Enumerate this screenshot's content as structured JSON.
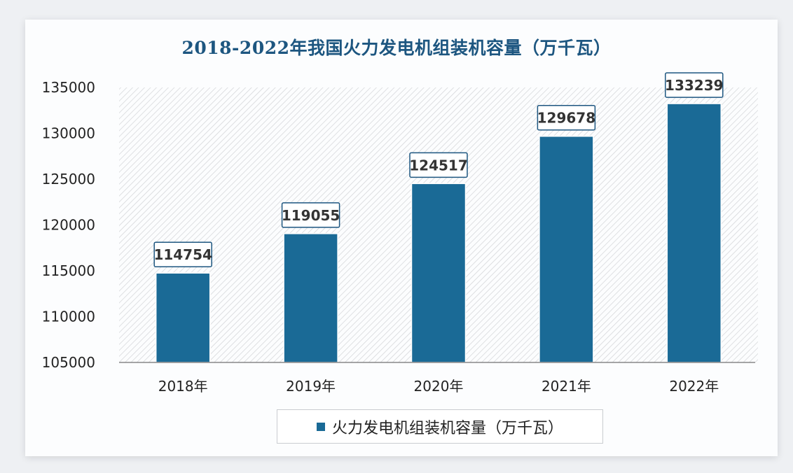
{
  "chart_data": {
    "type": "bar",
    "title": "2018-2022年我国火力发电机组装机容量（万千瓦）",
    "categories": [
      "2018年",
      "2019年",
      "2020年",
      "2021年",
      "2022年"
    ],
    "series": [
      {
        "name": "火力发电机组装机容量（万千瓦）",
        "values": [
          114754,
          119055,
          124517,
          129678,
          133239
        ]
      }
    ],
    "data_labels": [
      "114754",
      "119055",
      "124517",
      "129678",
      "133239"
    ],
    "ylim": [
      105000,
      135000
    ],
    "yticks": [
      105000,
      110000,
      115000,
      120000,
      125000,
      130000,
      135000
    ],
    "ytick_labels": [
      "105000",
      "110000",
      "115000",
      "120000",
      "125000",
      "130000",
      "135000"
    ],
    "grid": false,
    "legend": "bottom",
    "colors": {
      "bar": "#1a6a96",
      "title": "#1d5680",
      "label_border": "#1d5680"
    }
  }
}
